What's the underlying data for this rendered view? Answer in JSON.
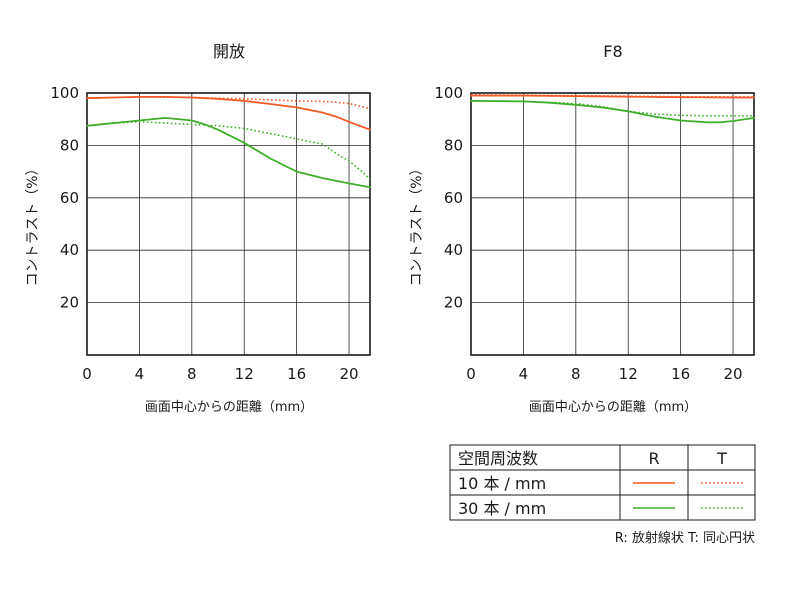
{
  "legend": {
    "header": "空間周波数",
    "col_r": "R",
    "col_t": "T",
    "rows": [
      {
        "label": "10 本 / mm",
        "color": "#f15a24"
      },
      {
        "label": "30 本 / mm",
        "color": "#3fae2a"
      }
    ],
    "note": "R: 放射線状  T: 同心円状"
  },
  "chart_data": [
    {
      "type": "line",
      "title": "開放",
      "xlabel": "画面中心からの距離（mm）",
      "ylabel": "コントラスト（%）",
      "xlim": [
        0,
        21.6
      ],
      "ylim": [
        0,
        100
      ],
      "xticks": [
        0,
        4,
        8,
        12,
        16,
        20
      ],
      "yticks": [
        20,
        40,
        60,
        80,
        100
      ],
      "grid": true,
      "series": [
        {
          "color": "#f15a24",
          "style": "solid",
          "x": [
            0,
            2,
            4,
            6,
            8,
            10,
            12,
            14,
            16,
            18,
            19,
            20,
            21.6
          ],
          "y": [
            98,
            98.3,
            98.5,
            98.5,
            98.3,
            97.8,
            97,
            95.8,
            94.5,
            92.5,
            91,
            89,
            86
          ]
        },
        {
          "color": "#f15a24",
          "style": "dotted",
          "x": [
            0,
            4,
            8,
            12,
            14,
            16,
            18,
            19,
            20,
            21.6
          ],
          "y": [
            98,
            98.5,
            98.3,
            97.8,
            97.4,
            97,
            96.8,
            96.5,
            96,
            94
          ]
        },
        {
          "color": "#3fae2a",
          "style": "solid",
          "x": [
            0,
            2,
            4,
            6,
            8,
            9,
            10,
            12,
            14,
            16,
            18,
            20,
            21.6
          ],
          "y": [
            87.5,
            88.5,
            89.5,
            90.5,
            89.5,
            88,
            86,
            81,
            75,
            70,
            67.5,
            65.5,
            64
          ]
        },
        {
          "color": "#3fae2a",
          "style": "dotted",
          "x": [
            0,
            2,
            4,
            6,
            8,
            10,
            12,
            14,
            16,
            18,
            19,
            20,
            21,
            21.6
          ],
          "y": [
            87.5,
            88.5,
            89,
            88.5,
            88,
            87.5,
            86.5,
            84.5,
            82.5,
            80.5,
            77,
            74,
            70,
            67
          ]
        }
      ]
    },
    {
      "type": "line",
      "title": "F8",
      "xlabel": "画面中心からの距離（mm）",
      "ylabel": "コントラスト（%）",
      "xlim": [
        0,
        21.6
      ],
      "ylim": [
        0,
        100
      ],
      "xticks": [
        0,
        4,
        8,
        12,
        16,
        20
      ],
      "yticks": [
        20,
        40,
        60,
        80,
        100
      ],
      "grid": true,
      "series": [
        {
          "color": "#f15a24",
          "style": "solid",
          "x": [
            0,
            4,
            8,
            12,
            16,
            20,
            21.6
          ],
          "y": [
            99,
            99,
            98.8,
            98.6,
            98.4,
            98.3,
            98.3
          ]
        },
        {
          "color": "#f15a24",
          "style": "dotted",
          "x": [
            0,
            4,
            8,
            12,
            16,
            20,
            21.6
          ],
          "y": [
            99.3,
            99.2,
            99,
            98.8,
            98.6,
            98.5,
            98.5
          ]
        },
        {
          "color": "#3fae2a",
          "style": "solid",
          "x": [
            0,
            4,
            6,
            8,
            10,
            12,
            14,
            16,
            18,
            19,
            20,
            21.6
          ],
          "y": [
            97,
            96.8,
            96.3,
            95.5,
            94.5,
            93,
            91,
            89.5,
            88.8,
            88.8,
            89.3,
            90.5
          ]
        },
        {
          "color": "#3fae2a",
          "style": "dotted",
          "x": [
            0,
            4,
            8,
            10,
            12,
            14,
            16,
            18,
            20,
            21.6
          ],
          "y": [
            97,
            96.8,
            96,
            94.8,
            93,
            92,
            91.5,
            91.3,
            91.3,
            91.3
          ]
        }
      ]
    }
  ]
}
